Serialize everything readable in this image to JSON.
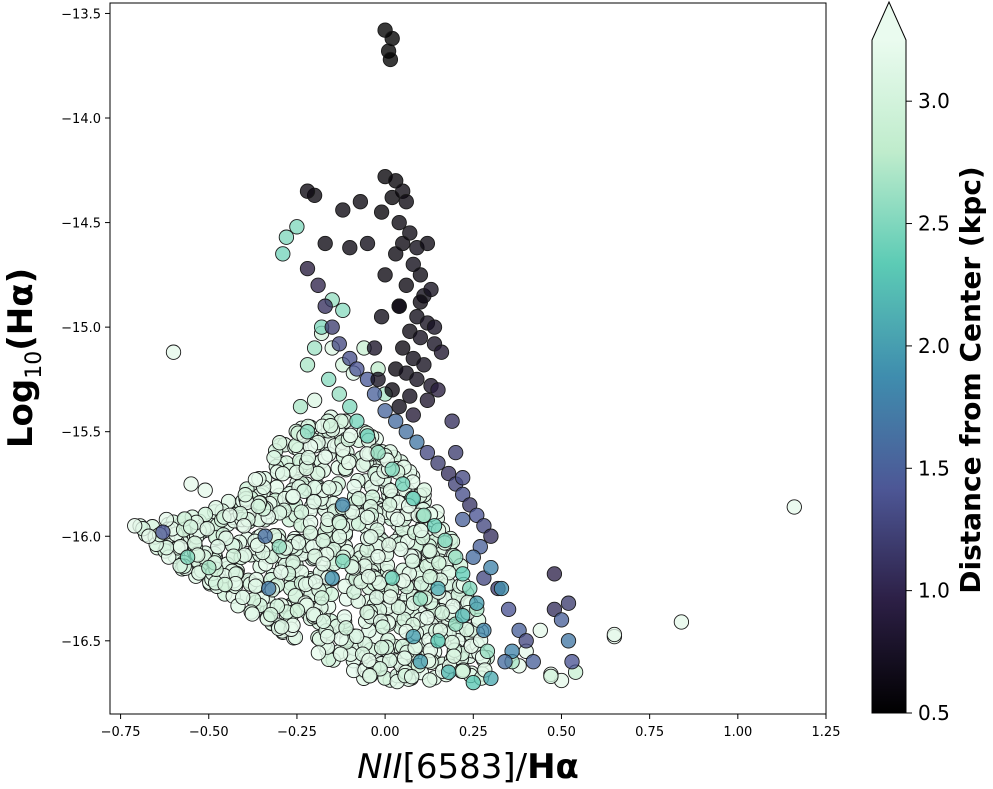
{
  "chart_data": {
    "type": "scatter",
    "title": "",
    "xlabel_italic": "NII",
    "xlabel_plain": "[6583]/",
    "xlabel_bold": "Hα",
    "ylabel_main": "Log",
    "ylabel_sub": "10",
    "ylabel_tail": "(Hα)",
    "xlim": [
      -0.78,
      1.25
    ],
    "ylim": [
      -16.85,
      -13.45
    ],
    "xticks": [
      -0.75,
      -0.5,
      -0.25,
      0.0,
      0.25,
      0.5,
      0.75,
      1.0,
      1.25
    ],
    "xtick_labels": [
      "−0.75",
      "−0.50",
      "−0.25",
      "0.00",
      "0.25",
      "0.50",
      "0.75",
      "1.00",
      "1.25"
    ],
    "yticks": [
      -13.5,
      -14.0,
      -14.5,
      -15.0,
      -15.5,
      -16.0,
      -16.5
    ],
    "ytick_labels": [
      "−13.5",
      "−14.0",
      "−14.5",
      "−15.0",
      "−15.5",
      "−16.0",
      "−16.5"
    ],
    "colorbar": {
      "label": "Distance from Center (kpc)",
      "range": [
        0.5,
        3.25
      ],
      "ticks": [
        0.5,
        1.0,
        1.5,
        2.0,
        2.5,
        3.0
      ],
      "tick_labels": [
        "0.5",
        "1.0",
        "1.5",
        "2.0",
        "2.5",
        "3.0"
      ],
      "extend": "max",
      "colormap_stops": [
        "#000000",
        "#2c1f45",
        "#4d5796",
        "#3f8dae",
        "#5ccbb5",
        "#bfeccc",
        "#eafbef"
      ]
    },
    "series": [
      {
        "points": [
          [
            0.0,
            -13.58
          ],
          [
            0.02,
            -13.62
          ],
          [
            0.01,
            -13.68
          ],
          [
            0.015,
            -13.72
          ],
          [
            0.0,
            -14.28
          ],
          [
            0.03,
            -14.3
          ],
          [
            0.05,
            -14.35
          ],
          [
            0.02,
            -14.38
          ],
          [
            0.06,
            -14.4
          ],
          [
            -0.01,
            -14.45
          ],
          [
            0.04,
            -14.5
          ],
          [
            0.07,
            -14.55
          ],
          [
            0.05,
            -14.6
          ],
          [
            0.09,
            -14.62
          ],
          [
            0.12,
            -14.6
          ],
          [
            0.03,
            -14.65
          ],
          [
            0.08,
            -14.7
          ],
          [
            0.1,
            -14.75
          ],
          [
            0.06,
            -14.8
          ],
          [
            0.11,
            -14.85
          ],
          [
            0.13,
            -14.82
          ],
          [
            0.04,
            -14.9
          ],
          [
            0.09,
            -14.95
          ],
          [
            0.12,
            -14.98
          ],
          [
            0.07,
            -15.02
          ],
          [
            0.1,
            -15.05
          ],
          [
            0.14,
            -15.08
          ],
          [
            0.05,
            -15.1
          ],
          [
            0.08,
            -15.15
          ],
          [
            0.11,
            -15.18
          ],
          [
            0.03,
            -15.2
          ],
          [
            0.06,
            -15.22
          ],
          [
            0.09,
            -15.25
          ],
          [
            0.13,
            -15.28
          ],
          [
            0.02,
            -15.3
          ],
          [
            0.07,
            -15.33
          ],
          [
            0.12,
            -15.35
          ],
          [
            0.04,
            -15.38
          ],
          [
            0.08,
            -15.42
          ],
          [
            0.15,
            -15.3
          ],
          [
            -0.02,
            -15.25
          ],
          [
            -0.03,
            -15.1
          ],
          [
            -0.01,
            -14.95
          ],
          [
            0.0,
            -14.75
          ],
          [
            0.14,
            -15.0
          ],
          [
            0.16,
            -15.12
          ],
          [
            -0.2,
            -14.37
          ],
          [
            -0.17,
            -14.6
          ],
          [
            -0.07,
            -14.4
          ],
          [
            -0.12,
            -14.44
          ],
          [
            -0.05,
            -14.6
          ],
          [
            -0.1,
            -14.62
          ],
          [
            -0.22,
            -14.35
          ],
          [
            0.04,
            -14.9
          ],
          [
            0.1,
            -14.88
          ]
        ],
        "distances": [
          0.5,
          0.5,
          0.5,
          0.5,
          0.55,
          0.55,
          0.6,
          0.55,
          0.6,
          0.55,
          0.6,
          0.62,
          0.6,
          0.65,
          0.62,
          0.6,
          0.65,
          0.62,
          0.6,
          0.65,
          0.7,
          0.6,
          0.65,
          0.7,
          0.62,
          0.68,
          0.72,
          0.6,
          0.65,
          0.7,
          0.6,
          0.65,
          0.7,
          0.75,
          0.6,
          0.68,
          0.8,
          0.65,
          0.85,
          0.9,
          0.7,
          0.75,
          0.65,
          0.6,
          0.72,
          0.8,
          0.6,
          0.62,
          0.6,
          0.6,
          0.65,
          0.62,
          0.6,
          0.62,
          0.6
        ]
      },
      {
        "points": [
          [
            -0.22,
            -14.72
          ],
          [
            -0.19,
            -14.8
          ],
          [
            -0.17,
            -14.9
          ],
          [
            -0.15,
            -15.0
          ],
          [
            -0.13,
            -15.08
          ],
          [
            -0.1,
            -15.15
          ],
          [
            -0.08,
            -15.2
          ],
          [
            -0.05,
            -15.25
          ],
          [
            -0.03,
            -15.32
          ],
          [
            0.0,
            -15.4
          ],
          [
            0.03,
            -15.45
          ],
          [
            0.06,
            -15.5
          ],
          [
            0.09,
            -15.55
          ],
          [
            0.12,
            -15.6
          ],
          [
            0.15,
            -15.65
          ],
          [
            0.18,
            -15.7
          ],
          [
            0.2,
            -15.75
          ],
          [
            0.22,
            -15.8
          ],
          [
            0.24,
            -15.85
          ],
          [
            0.26,
            -15.9
          ],
          [
            0.28,
            -15.95
          ],
          [
            0.3,
            -16.0
          ],
          [
            0.27,
            -16.05
          ],
          [
            0.25,
            -16.1
          ],
          [
            0.28,
            -16.2
          ],
          [
            0.32,
            -16.25
          ],
          [
            0.35,
            -16.35
          ],
          [
            0.38,
            -16.45
          ],
          [
            0.36,
            -16.55
          ],
          [
            0.34,
            -16.6
          ],
          [
            0.4,
            -16.5
          ],
          [
            0.42,
            -16.6
          ],
          [
            0.48,
            -16.35
          ],
          [
            0.5,
            -16.4
          ],
          [
            0.52,
            -16.5
          ],
          [
            0.53,
            -16.6
          ],
          [
            0.48,
            -16.18
          ],
          [
            0.52,
            -16.32
          ],
          [
            0.33,
            -16.25
          ],
          [
            0.19,
            -15.45
          ],
          [
            0.2,
            -15.6
          ],
          [
            0.22,
            -15.72
          ],
          [
            -0.63,
            -15.98
          ],
          [
            -0.34,
            -16.0
          ],
          [
            -0.33,
            -16.25
          ],
          [
            -0.12,
            -15.85
          ],
          [
            -0.15,
            -16.2
          ],
          [
            0.08,
            -16.48
          ],
          [
            0.15,
            -16.25
          ],
          [
            0.22,
            -16.38
          ],
          [
            0.28,
            -16.45
          ],
          [
            0.1,
            -16.6
          ],
          [
            0.18,
            -16.65
          ],
          [
            0.25,
            -16.7
          ],
          [
            0.3,
            -16.68
          ],
          [
            0.22,
            -15.92
          ],
          [
            0.3,
            -16.15
          ],
          [
            0.26,
            -16.32
          ]
        ],
        "distances": [
          0.9,
          1.0,
          1.1,
          1.2,
          1.3,
          1.35,
          1.4,
          1.45,
          1.5,
          1.55,
          1.6,
          1.65,
          1.7,
          1.3,
          1.2,
          1.1,
          1.25,
          1.35,
          1.15,
          1.4,
          1.3,
          1.1,
          1.5,
          1.6,
          1.3,
          1.2,
          1.4,
          1.5,
          1.8,
          1.6,
          1.3,
          1.5,
          1.1,
          1.5,
          1.7,
          1.4,
          1.0,
          1.2,
          1.9,
          1.1,
          1.2,
          1.3,
          1.4,
          1.6,
          1.7,
          1.8,
          1.9,
          2.0,
          2.1,
          2.2,
          1.8,
          2.0,
          2.2,
          2.3,
          2.1,
          1.5,
          1.8,
          2.0
        ]
      },
      {
        "points": [
          [
            -0.28,
            -14.57
          ],
          [
            -0.25,
            -14.52
          ],
          [
            -0.29,
            -14.65
          ],
          [
            -0.15,
            -14.87
          ],
          [
            -0.12,
            -14.92
          ],
          [
            -0.18,
            -15.0
          ],
          [
            -0.2,
            -15.1
          ],
          [
            -0.22,
            -15.18
          ],
          [
            -0.16,
            -15.25
          ],
          [
            -0.13,
            -15.32
          ],
          [
            -0.1,
            -15.38
          ],
          [
            -0.08,
            -15.45
          ],
          [
            -0.24,
            -15.38
          ],
          [
            -0.22,
            -15.5
          ],
          [
            -0.05,
            -15.52
          ],
          [
            -0.02,
            -15.6
          ],
          [
            0.02,
            -15.68
          ],
          [
            0.05,
            -15.75
          ],
          [
            0.08,
            -15.82
          ],
          [
            0.11,
            -15.9
          ],
          [
            0.14,
            -15.95
          ],
          [
            0.17,
            -16.02
          ],
          [
            0.2,
            -16.1
          ],
          [
            0.22,
            -16.18
          ],
          [
            0.24,
            -16.25
          ],
          [
            0.26,
            -16.35
          ],
          [
            0.2,
            -16.42
          ],
          [
            0.15,
            -16.5
          ],
          [
            -0.02,
            -15.2
          ],
          [
            0.0,
            -15.32
          ],
          [
            -0.06,
            -15.1
          ],
          [
            0.65,
            -16.47
          ],
          [
            0.54,
            -16.65
          ],
          [
            0.47,
            -16.67
          ],
          [
            0.36,
            -16.6
          ],
          [
            0.29,
            -16.55
          ],
          [
            -0.56,
            -16.1
          ],
          [
            -0.5,
            -16.15
          ],
          [
            -0.3,
            -16.05
          ],
          [
            -0.12,
            -16.12
          ],
          [
            0.02,
            -16.2
          ],
          [
            0.1,
            -16.3
          ]
        ],
        "distances": [
          2.5,
          2.5,
          2.45,
          2.6,
          2.55,
          2.5,
          2.65,
          2.7,
          2.55,
          2.6,
          2.5,
          2.45,
          2.7,
          2.55,
          2.4,
          2.6,
          2.5,
          2.45,
          2.35,
          2.6,
          2.4,
          2.5,
          2.6,
          2.35,
          2.5,
          2.7,
          2.6,
          2.3,
          2.8,
          2.7,
          2.9,
          3.2,
          2.9,
          3.0,
          2.7,
          2.6,
          2.5,
          2.7,
          2.6,
          2.5,
          2.4,
          2.6
        ]
      },
      {
        "points": [
          [
            -0.6,
            -15.12
          ],
          [
            1.16,
            -15.86
          ],
          [
            0.84,
            -16.41
          ],
          [
            0.65,
            -16.48
          ],
          [
            0.5,
            -16.69
          ],
          [
            0.47,
            -16.66
          ],
          [
            -0.71,
            -15.95
          ],
          [
            -0.67,
            -16.0
          ],
          [
            -0.55,
            -15.75
          ],
          [
            -0.51,
            -15.78
          ],
          [
            -0.44,
            -15.9
          ],
          [
            -0.4,
            -15.95
          ],
          [
            -0.62,
            -15.92
          ],
          [
            -0.58,
            -16.05
          ],
          [
            -0.2,
            -15.35
          ],
          [
            -0.23,
            -15.52
          ],
          [
            -0.18,
            -15.03
          ],
          [
            -0.15,
            -15.1
          ],
          [
            -0.12,
            -15.18
          ],
          [
            -0.09,
            -15.22
          ],
          [
            0.4,
            -16.55
          ],
          [
            0.44,
            -16.45
          ],
          [
            0.38,
            -16.62
          ]
        ],
        "distances": [
          3.2,
          3.2,
          3.2,
          3.2,
          3.2,
          3.2,
          3.2,
          3.2,
          3.2,
          3.2,
          3.2,
          3.2,
          3.2,
          3.2,
          3.1,
          3.2,
          3.0,
          3.1,
          3.0,
          3.1,
          3.2,
          3.2,
          3.2
        ]
      }
    ],
    "fill_region": {
      "points": [
        [
          -0.7,
          -15.95
        ],
        [
          -0.5,
          -15.88
        ],
        [
          -0.35,
          -15.7
        ],
        [
          -0.3,
          -15.55
        ],
        [
          -0.22,
          -15.45
        ],
        [
          -0.12,
          -15.42
        ],
        [
          0.0,
          -15.55
        ],
        [
          0.08,
          -15.7
        ],
        [
          0.14,
          -15.85
        ],
        [
          0.2,
          -16.05
        ],
        [
          0.25,
          -16.25
        ],
        [
          0.28,
          -16.45
        ],
        [
          0.3,
          -16.68
        ],
        [
          -0.05,
          -16.7
        ],
        [
          -0.3,
          -16.45
        ],
        [
          -0.5,
          -16.25
        ],
        [
          -0.65,
          -16.08
        ]
      ],
      "n_points": 900,
      "distance_min": 3.0,
      "distance_max": 3.25
    }
  }
}
